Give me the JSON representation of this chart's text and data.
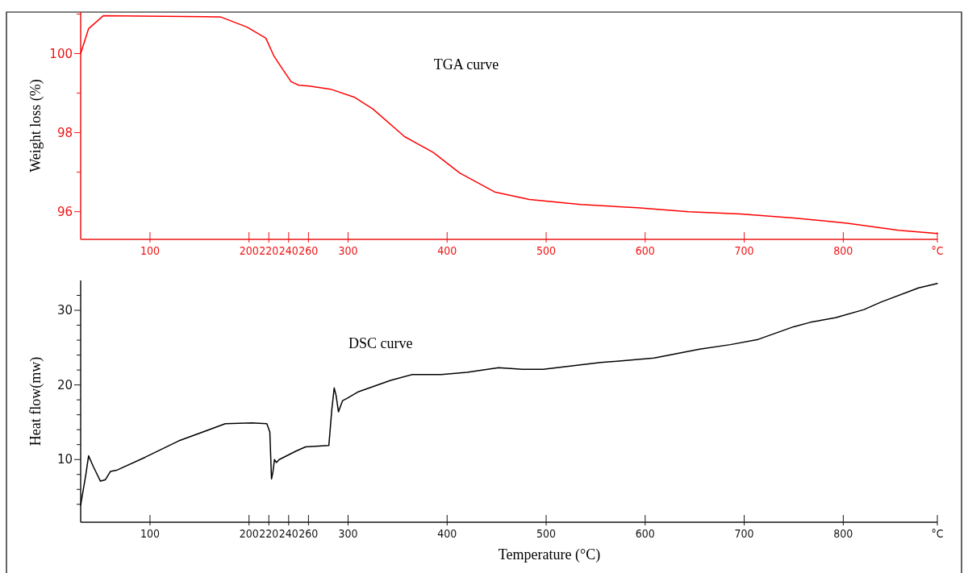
{
  "chart_data": [
    {
      "type": "line",
      "ylabel": "Weight loss (%)",
      "x": [
        30,
        38,
        53,
        171,
        198,
        217,
        225.1,
        232.7,
        242.5,
        250.3,
        260.6,
        282.4,
        306,
        325,
        357,
        386,
        412.7,
        448,
        483,
        535,
        592,
        644,
        696,
        750,
        804,
        856,
        895
      ],
      "series": [
        {
          "color": "#ff0000",
          "values": [
            100.0,
            100.63,
            100.96,
            100.93,
            100.67,
            100.39,
            99.94,
            99.65,
            99.29,
            99.2,
            99.18,
            99.1,
            98.9,
            98.6,
            97.9,
            97.5,
            96.98,
            96.5,
            96.31,
            96.18,
            96.1,
            96.0,
            95.94,
            95.84,
            95.71,
            95.53,
            95.45
          ]
        }
      ],
      "xlim": [
        30,
        895
      ],
      "xticks": [
        100,
        200,
        220,
        240,
        260,
        300,
        400,
        500,
        600,
        700,
        800,
        {
          "value": 895,
          "label": "°C"
        }
      ],
      "ylim": [
        95.3,
        101.05
      ],
      "yticks": [
        96,
        {
          "value": 97,
          "label": null
        },
        98,
        {
          "value": 99,
          "label": null
        },
        100,
        {
          "value": 101,
          "label": null
        }
      ],
      "annotations": [
        "TGA curve"
      ],
      "marker": "none",
      "line_style": "solid"
    },
    {
      "type": "line",
      "ylabel": "Heat flow(mw)",
      "xlabel": "Temperature (°C)",
      "x": [
        30,
        35,
        38,
        43,
        50,
        55,
        60,
        67,
        95,
        129,
        176,
        203,
        218,
        221,
        222.7,
        224.1,
        225.7,
        227.6,
        230.5,
        247,
        257,
        280.6,
        283.6,
        286,
        287.9,
        290.3,
        294.5,
        298.8,
        310.7,
        342.9,
        365,
        394,
        420,
        452,
        476,
        497,
        555,
        609,
        655,
        686,
        714,
        750,
        767,
        792,
        821,
        838,
        876,
        895
      ],
      "series": [
        {
          "color": "#000000",
          "values": [
            3.9,
            7.8,
            10.5,
            9.0,
            7.1,
            7.3,
            8.4,
            8.6,
            10.3,
            12.5,
            14.8,
            14.9,
            14.8,
            13.7,
            7.4,
            8.3,
            10.0,
            9.6,
            10.0,
            11.1,
            11.7,
            11.9,
            16.7,
            19.6,
            18.6,
            16.4,
            17.9,
            18.2,
            19.1,
            20.6,
            21.4,
            21.4,
            21.7,
            22.3,
            22.1,
            22.1,
            23.0,
            23.6,
            24.8,
            25.4,
            26.1,
            27.8,
            28.4,
            29.0,
            30.1,
            31.1,
            33.0,
            33.6
          ]
        }
      ],
      "xlim": [
        30,
        895
      ],
      "xticks": [
        100,
        200,
        220,
        240,
        260,
        300,
        400,
        500,
        600,
        700,
        800,
        {
          "value": 895,
          "label": "°C"
        }
      ],
      "ylim": [
        1.6,
        34
      ],
      "yticks": [
        {
          "value": 4,
          "label": null
        },
        {
          "value": 6,
          "label": null
        },
        {
          "value": 8,
          "label": null
        },
        10,
        {
          "value": 12,
          "label": null
        },
        {
          "value": 14,
          "label": null
        },
        {
          "value": 16,
          "label": null
        },
        {
          "value": 18,
          "label": null
        },
        20,
        {
          "value": 22,
          "label": null
        },
        {
          "value": 24,
          "label": null
        },
        {
          "value": 26,
          "label": null
        },
        {
          "value": 28,
          "label": null
        },
        30,
        {
          "value": 32,
          "label": null
        }
      ],
      "annotations": [
        "DSC curve"
      ],
      "marker": "none",
      "line_style": "solid"
    }
  ]
}
